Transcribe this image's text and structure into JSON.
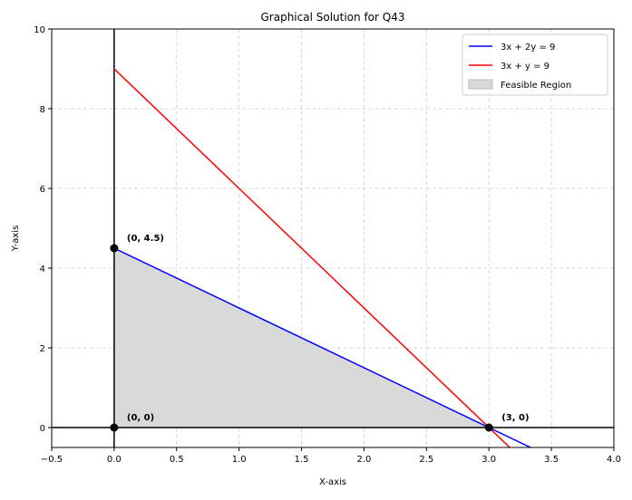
{
  "chart_data": {
    "type": "line",
    "title": "Graphical Solution for Q43",
    "xlabel": "X-axis",
    "ylabel": "Y-axis",
    "xlim": [
      -0.5,
      4.0
    ],
    "ylim": [
      -0.5,
      10
    ],
    "xticks": [
      -0.5,
      0.0,
      0.5,
      1.0,
      1.5,
      2.0,
      2.5,
      3.0,
      3.5,
      4.0
    ],
    "xtick_labels": [
      "−0.5",
      "0.0",
      "0.5",
      "1.0",
      "1.5",
      "2.0",
      "2.5",
      "3.0",
      "3.5",
      "4.0"
    ],
    "yticks": [
      0,
      2,
      4,
      6,
      8,
      10
    ],
    "ytick_labels": [
      "0",
      "2",
      "4",
      "6",
      "8",
      "10"
    ],
    "grid": true,
    "legend_position": "top-right",
    "series": [
      {
        "name": "3x + 2y = 9",
        "color": "#0000ff",
        "x": [
          0,
          3.333
        ],
        "y": [
          4.5,
          -0.5
        ]
      },
      {
        "name": "3x + y = 9",
        "color": "#ff0000",
        "x": [
          0,
          3.1667
        ],
        "y": [
          9,
          -0.5
        ]
      }
    ],
    "region": {
      "name": "Feasible Region",
      "color": "#d9d9d9",
      "points": [
        [
          0,
          0
        ],
        [
          0,
          4.5
        ],
        [
          3,
          0
        ]
      ]
    },
    "points": [
      {
        "x": 0,
        "y": 4.5,
        "label": "(0, 4.5)"
      },
      {
        "x": 0,
        "y": 0,
        "label": "(0, 0)"
      },
      {
        "x": 3,
        "y": 0,
        "label": "(3, 0)"
      }
    ]
  }
}
